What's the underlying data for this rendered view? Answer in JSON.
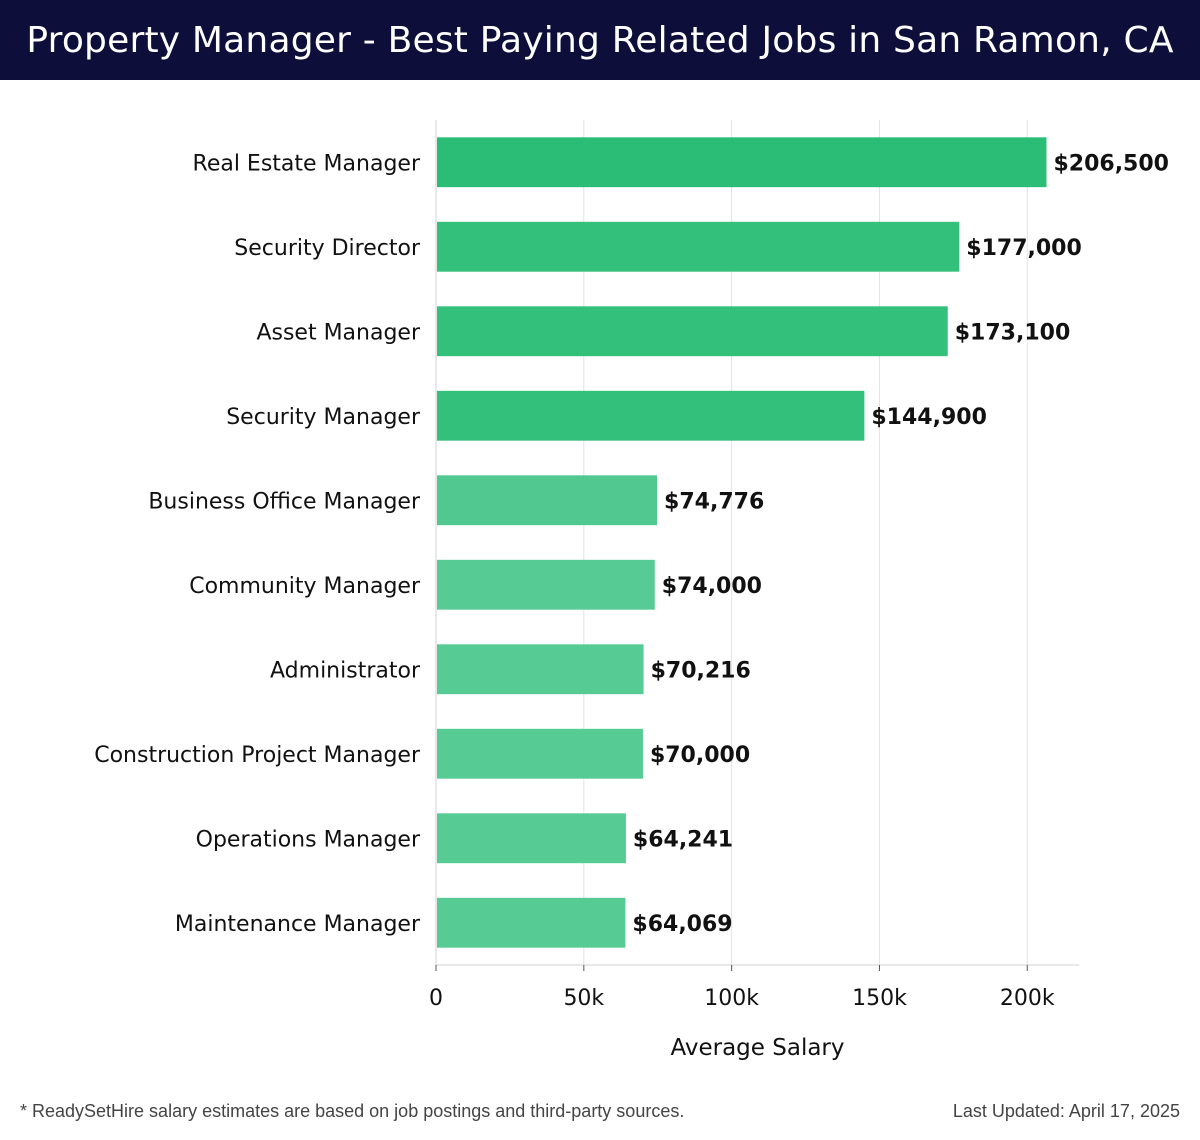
{
  "header": {
    "title": "Property Manager - Best Paying Related Jobs in San Ramon, CA",
    "background": "#0d0f3a"
  },
  "chart_data": {
    "type": "bar",
    "orientation": "horizontal",
    "categories": [
      "Real Estate Manager",
      "Security Director",
      "Asset Manager",
      "Security Manager",
      "Business Office Manager",
      "Community Manager",
      "Administrator",
      "Construction Project Manager",
      "Operations Manager",
      "Maintenance Manager"
    ],
    "values": [
      206500,
      177000,
      173100,
      144900,
      74776,
      74000,
      70216,
      70000,
      64241,
      64069
    ],
    "value_labels": [
      "$206,500",
      "$177,000",
      "$173,100",
      "$144,900",
      "$74,776",
      "$74,000",
      "$70,216",
      "$70,000",
      "$64,241",
      "$64,069"
    ],
    "bar_colors": [
      "#2bbd76",
      "#33c07b",
      "#33c07b",
      "#33c07b",
      "#50c88f",
      "#56cb93",
      "#56cb93",
      "#56cb93",
      "#56cb93",
      "#56cb93"
    ],
    "xlabel": "Average Salary",
    "ylabel": "",
    "xlim": [
      0,
      217500
    ],
    "xticks": [
      0,
      50000,
      100000,
      150000,
      200000
    ],
    "xtick_labels": [
      "0",
      "50k",
      "100k",
      "150k",
      "200k"
    ],
    "grid": true,
    "legend": false
  },
  "footer": {
    "note": "* ReadySetHire salary estimates are based on job postings and third-party sources.",
    "last_updated": "Last Updated: April 17, 2025"
  }
}
